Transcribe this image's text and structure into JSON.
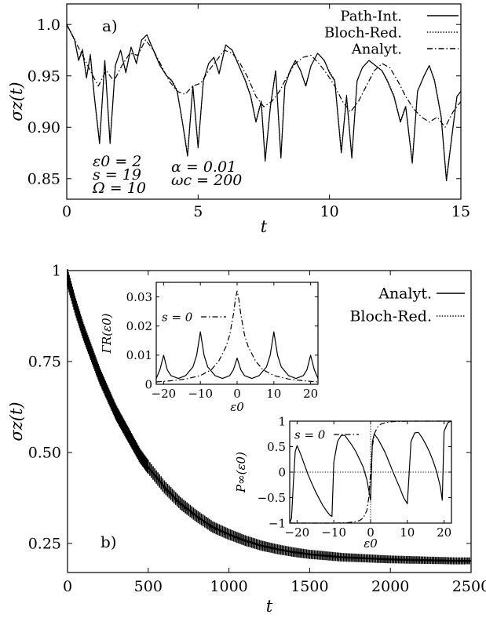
{
  "chart_data": [
    {
      "type": "line",
      "panel_label": "a)",
      "xlabel": "t",
      "ylabel": "σz(t)",
      "xlim": [
        0,
        15
      ],
      "ylim": [
        0.83,
        1.02
      ],
      "xticks": [
        0,
        5,
        10,
        15
      ],
      "xtick_labels": [
        "0",
        "5",
        "10",
        "15"
      ],
      "yticks": [
        0.85,
        0.9,
        0.95,
        1.0
      ],
      "ytick_labels": [
        "0.85",
        "0.90",
        "0.95",
        "1.0"
      ],
      "legend_position": "top-right",
      "annotations_left": [
        "ε0 = 2",
        "s = 19",
        "Ω = 10"
      ],
      "annotations_right": [
        "α = 0.01",
        "ωc = 200"
      ],
      "series": [
        {
          "name": "Path-Int.",
          "style": "solid",
          "x": [
            0,
            0.3,
            0.45,
            0.6,
            0.75,
            0.9,
            1.05,
            1.25,
            1.45,
            1.65,
            1.85,
            2.05,
            2.25,
            2.45,
            2.65,
            2.85,
            3.05,
            3.3,
            3.55,
            3.8,
            4.0,
            4.2,
            4.4,
            4.6,
            4.8,
            5.0,
            5.2,
            5.4,
            5.6,
            5.8,
            6.05,
            6.3,
            6.55,
            6.8,
            7.0,
            7.2,
            7.4,
            7.55,
            7.75,
            7.95,
            8.15,
            8.3,
            8.5,
            8.7,
            8.9,
            9.1,
            9.3,
            9.55,
            9.8,
            10.0,
            10.2,
            10.45,
            10.65,
            10.85,
            11.05,
            11.25,
            11.5,
            11.75,
            12.0,
            12.2,
            12.45,
            12.7,
            12.9,
            13.15,
            13.35,
            13.6,
            13.8,
            14.0,
            14.25,
            14.45,
            14.7,
            14.85,
            15.0
          ],
          "y": [
            1.0,
            0.985,
            0.965,
            0.975,
            0.948,
            0.97,
            0.93,
            0.884,
            0.965,
            0.884,
            0.96,
            0.975,
            0.953,
            0.978,
            0.962,
            0.985,
            0.99,
            0.975,
            0.96,
            0.95,
            0.945,
            0.935,
            0.905,
            0.872,
            0.94,
            0.88,
            0.945,
            0.962,
            0.968,
            0.952,
            0.98,
            0.975,
            0.96,
            0.945,
            0.93,
            0.905,
            0.925,
            0.867,
            0.92,
            0.955,
            0.87,
            0.94,
            0.955,
            0.965,
            0.955,
            0.94,
            0.96,
            0.972,
            0.965,
            0.953,
            0.945,
            0.875,
            0.93,
            0.87,
            0.945,
            0.958,
            0.965,
            0.96,
            0.955,
            0.945,
            0.93,
            0.905,
            0.92,
            0.865,
            0.935,
            0.95,
            0.96,
            0.945,
            0.91,
            0.848,
            0.9,
            0.93,
            0.935
          ]
        },
        {
          "name": "Bloch-Red.",
          "style": "dotted",
          "x": [
            0,
            0.3,
            0.45,
            0.6,
            0.75,
            0.9,
            1.05,
            1.25,
            1.45,
            1.65,
            1.85,
            2.05,
            2.25,
            2.45,
            2.65,
            2.85,
            3.05,
            3.3,
            3.55,
            3.8,
            4.0,
            4.2,
            4.4,
            4.6,
            4.8,
            5.0,
            5.2,
            5.4,
            5.6,
            5.8,
            6.05,
            6.3,
            6.55,
            6.8,
            7.0,
            7.2,
            7.4,
            7.55,
            7.75,
            7.95,
            8.15,
            8.3,
            8.5,
            8.7,
            8.9,
            9.1,
            9.3,
            9.55,
            9.8,
            10.0,
            10.2,
            10.45,
            10.65,
            10.85,
            11.05,
            11.25,
            11.5,
            11.75,
            12.0,
            12.2,
            12.45,
            12.7,
            12.9,
            13.15,
            13.35,
            13.6,
            13.8,
            14.0,
            14.25,
            14.45,
            14.7,
            14.85,
            15.0
          ],
          "y": [
            1.0,
            0.986,
            0.966,
            0.976,
            0.949,
            0.971,
            0.931,
            0.886,
            0.965,
            0.886,
            0.96,
            0.975,
            0.954,
            0.978,
            0.962,
            0.985,
            0.99,
            0.975,
            0.96,
            0.95,
            0.946,
            0.936,
            0.906,
            0.874,
            0.94,
            0.882,
            0.945,
            0.962,
            0.968,
            0.953,
            0.98,
            0.975,
            0.96,
            0.946,
            0.931,
            0.906,
            0.926,
            0.869,
            0.921,
            0.955,
            0.872,
            0.94,
            0.955,
            0.965,
            0.955,
            0.941,
            0.96,
            0.972,
            0.965,
            0.954,
            0.946,
            0.877,
            0.931,
            0.872,
            0.945,
            0.958,
            0.965,
            0.96,
            0.955,
            0.946,
            0.931,
            0.906,
            0.921,
            0.867,
            0.935,
            0.95,
            0.96,
            0.946,
            0.911,
            0.85,
            0.901,
            0.93,
            0.935
          ]
        },
        {
          "name": "Analyt.",
          "style": "dashdot",
          "x": [
            0,
            0.3,
            0.6,
            0.9,
            1.2,
            1.5,
            1.8,
            2.1,
            2.4,
            2.7,
            3.0,
            3.3,
            3.6,
            3.9,
            4.2,
            4.5,
            4.8,
            5.1,
            5.4,
            5.7,
            6.0,
            6.3,
            6.6,
            6.9,
            7.2,
            7.5,
            7.8,
            8.1,
            8.4,
            8.7,
            9.0,
            9.3,
            9.6,
            9.9,
            10.2,
            10.5,
            10.8,
            11.1,
            11.4,
            11.7,
            12.0,
            12.3,
            12.6,
            12.9,
            13.2,
            13.5,
            13.8,
            14.1,
            14.4,
            14.7,
            15.0
          ],
          "y": [
            1.0,
            0.985,
            0.97,
            0.955,
            0.94,
            0.955,
            0.945,
            0.96,
            0.972,
            0.97,
            0.985,
            0.975,
            0.96,
            0.945,
            0.935,
            0.932,
            0.94,
            0.943,
            0.955,
            0.965,
            0.975,
            0.972,
            0.962,
            0.948,
            0.93,
            0.92,
            0.925,
            0.935,
            0.95,
            0.962,
            0.968,
            0.97,
            0.962,
            0.952,
            0.94,
            0.925,
            0.915,
            0.925,
            0.94,
            0.955,
            0.962,
            0.958,
            0.945,
            0.93,
            0.918,
            0.91,
            0.905,
            0.91,
            0.9,
            0.915,
            0.925
          ]
        }
      ]
    },
    {
      "type": "line",
      "panel_label": "b)",
      "xlabel": "t",
      "ylabel": "σz(t)",
      "xlim": [
        0,
        2500
      ],
      "ylim": [
        0.17,
        1.0
      ],
      "xticks": [
        0,
        500,
        1000,
        1500,
        2000,
        2500
      ],
      "xtick_labels": [
        "0",
        "500",
        "1000",
        "1500",
        "2000",
        "2500"
      ],
      "yticks": [
        0.25,
        0.5,
        0.75,
        1.0
      ],
      "ytick_labels": [
        "0.25",
        "0.50",
        "0.75",
        "1"
      ],
      "legend_position": "top-right",
      "series": [
        {
          "name": "Analyt.",
          "style": "solid",
          "x": [
            0,
            50,
            100,
            150,
            200,
            250,
            300,
            350,
            400,
            450,
            500,
            600,
            700,
            800,
            900,
            1000,
            1100,
            1200,
            1300,
            1400,
            1500,
            1600,
            1700,
            1800,
            1900,
            2000,
            2100,
            2200,
            2300,
            2400,
            2500
          ],
          "y": [
            0.98,
            0.9,
            0.83,
            0.77,
            0.71,
            0.66,
            0.61,
            0.57,
            0.53,
            0.49,
            0.46,
            0.405,
            0.36,
            0.325,
            0.295,
            0.275,
            0.258,
            0.244,
            0.234,
            0.226,
            0.22,
            0.216,
            0.212,
            0.21,
            0.208,
            0.206,
            0.205,
            0.204,
            0.203,
            0.202,
            0.202
          ]
        },
        {
          "name": "Bloch-Red.",
          "style": "dotted",
          "x": [
            0,
            50,
            100,
            150,
            200,
            250,
            300,
            350,
            400,
            450,
            500,
            600,
            700,
            800,
            900,
            1000,
            1100,
            1200,
            1300,
            1400,
            1500,
            1600,
            1700,
            1800,
            1900,
            2000,
            2100,
            2200,
            2300,
            2400,
            2500
          ],
          "y": [
            0.97,
            0.885,
            0.815,
            0.755,
            0.695,
            0.645,
            0.6,
            0.56,
            0.52,
            0.48,
            0.45,
            0.398,
            0.355,
            0.32,
            0.291,
            0.271,
            0.255,
            0.242,
            0.232,
            0.225,
            0.219,
            0.215,
            0.211,
            0.209,
            0.207,
            0.205,
            0.204,
            0.203,
            0.202,
            0.201,
            0.201
          ]
        }
      ]
    },
    {
      "type": "line",
      "panel_label": "",
      "xlabel": "ε0",
      "ylabel": "ΓR(ε0)",
      "xlim": [
        -22,
        22
      ],
      "ylim": [
        0,
        0.035
      ],
      "xticks": [
        -20,
        -10,
        0,
        10,
        20
      ],
      "xtick_labels": [
        "−20",
        "−10",
        "0",
        "10",
        "20"
      ],
      "yticks": [
        0,
        0.01,
        0.02,
        0.03
      ],
      "ytick_labels": [
        "0",
        "0.01",
        "0.02",
        "0.03"
      ],
      "legend_position": "top-left",
      "series": [
        {
          "name": "",
          "style": "solid",
          "x": [
            -22,
            -21,
            -20,
            -19,
            -18,
            -16,
            -14,
            -12,
            -11,
            -10,
            -9,
            -8,
            -6,
            -4,
            -2,
            -1,
            0,
            1,
            2,
            4,
            6,
            8,
            9,
            10,
            11,
            12,
            14,
            16,
            18,
            19,
            20,
            21,
            22
          ],
          "y": [
            0.002,
            0.005,
            0.01,
            0.005,
            0.003,
            0.002,
            0.003,
            0.006,
            0.01,
            0.018,
            0.01,
            0.006,
            0.003,
            0.002,
            0.003,
            0.005,
            0.009,
            0.005,
            0.003,
            0.002,
            0.003,
            0.006,
            0.01,
            0.018,
            0.01,
            0.006,
            0.003,
            0.002,
            0.003,
            0.005,
            0.01,
            0.005,
            0.002
          ]
        },
        {
          "name": "s = 0",
          "style": "dashdot",
          "x": [
            -22,
            -18,
            -14,
            -10,
            -7,
            -5,
            -3,
            -2,
            -1,
            -0.5,
            0,
            0.5,
            1,
            2,
            3,
            5,
            7,
            10,
            14,
            18,
            22
          ],
          "y": [
            0.0008,
            0.0012,
            0.0018,
            0.003,
            0.005,
            0.008,
            0.013,
            0.017,
            0.024,
            0.029,
            0.032,
            0.029,
            0.024,
            0.017,
            0.013,
            0.008,
            0.005,
            0.003,
            0.0018,
            0.0012,
            0.0008
          ]
        }
      ]
    },
    {
      "type": "line",
      "panel_label": "",
      "xlabel": "ε0",
      "ylabel": "P∞(ε0)",
      "xlim": [
        -22,
        22
      ],
      "ylim": [
        -1,
        1
      ],
      "xticks": [
        -20,
        -10,
        0,
        10,
        20
      ],
      "xtick_labels": [
        "−20",
        "−10",
        "0",
        "10",
        "20"
      ],
      "yticks": [
        -1,
        -0.5,
        0,
        0.5,
        1
      ],
      "ytick_labels": [
        "−1",
        "−0.5",
        "0",
        "0.5",
        "1"
      ],
      "legend_position": "top-left",
      "series": [
        {
          "name": "",
          "style": "solid",
          "x": [
            -22,
            -21.5,
            -21,
            -20.5,
            -20,
            -19,
            -18,
            -17,
            -16,
            -15,
            -14,
            -13,
            -12,
            -11,
            -10.5,
            -10,
            -9,
            -8,
            -7,
            -6,
            -5,
            -4,
            -3,
            -2,
            -1,
            0,
            0.5,
            1,
            2,
            3,
            4,
            5,
            6,
            7,
            8,
            9,
            10,
            10.5,
            11,
            12,
            13,
            14,
            15,
            16,
            17,
            18,
            19,
            19.5,
            20,
            21,
            22
          ],
          "y": [
            -1,
            -0.9,
            -0.2,
            0.4,
            0.52,
            0.35,
            0.15,
            -0.05,
            -0.22,
            -0.38,
            -0.52,
            -0.65,
            -0.76,
            -0.85,
            -0.87,
            0.2,
            0.6,
            0.72,
            0.72,
            0.62,
            0.52,
            0.4,
            0.25,
            0.1,
            -0.15,
            -0.55,
            0.6,
            0.75,
            0.65,
            0.52,
            0.38,
            0.2,
            0.02,
            -0.15,
            -0.32,
            -0.5,
            -0.62,
            0.0,
            0.6,
            0.77,
            0.78,
            0.68,
            0.55,
            0.4,
            0.22,
            0.0,
            -0.3,
            -0.55,
            0.8,
            0.97,
            1.0
          ]
        },
        {
          "name": "s = 0",
          "style": "dashdot",
          "x": [
            -22,
            -15,
            -10,
            -6,
            -4,
            -3,
            -2,
            -1,
            -0.5,
            0,
            0.5,
            1,
            2,
            3,
            4,
            6,
            10,
            15,
            22
          ],
          "y": [
            -1,
            -1,
            -1,
            -0.99,
            -0.97,
            -0.95,
            -0.9,
            -0.75,
            -0.5,
            0,
            0.5,
            0.75,
            0.9,
            0.95,
            0.97,
            0.99,
            1,
            1,
            1
          ]
        }
      ]
    }
  ]
}
